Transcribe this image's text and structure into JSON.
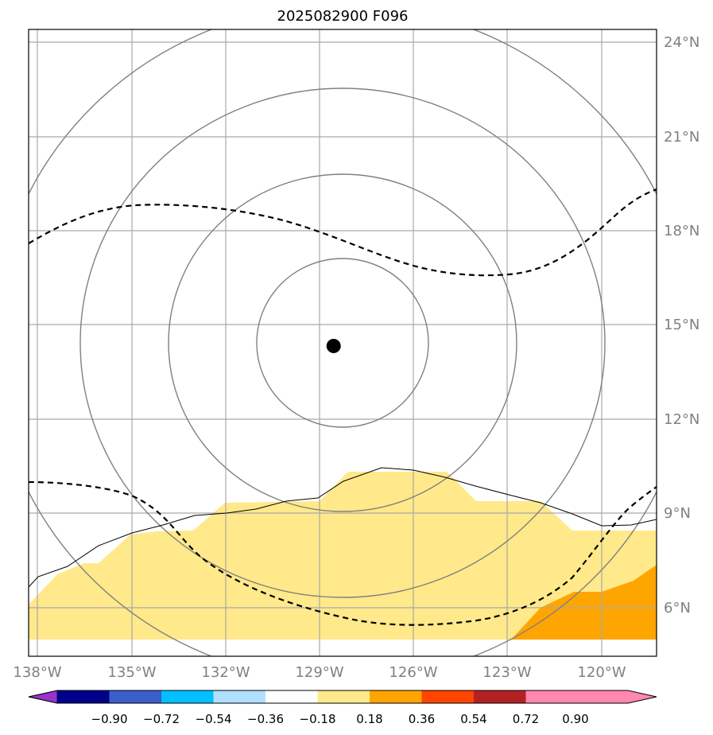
{
  "title": "2025082900 F096",
  "map": {
    "lon_range": [
      -138.5,
      -117.5
    ],
    "lat_range": [
      4.5,
      24.5
    ],
    "storm_center": {
      "lon": -128.3,
      "lat": 14.4
    },
    "lon_labels": [
      "138°W",
      "135°W",
      "132°W",
      "129°W",
      "126°W",
      "123°W",
      "120°W"
    ],
    "lat_labels": [
      "24°N",
      "21°N",
      "18°N",
      "15°N",
      "12°N",
      "9°N",
      "6°N"
    ],
    "range_rings_deg": [
      2.2,
      4.9,
      7.6,
      10.3
    ],
    "field_colors": {
      "low": "#ffe98a",
      "mid": "#ffa500"
    },
    "contour_color": "#808080",
    "dashed_line_color": "#000000",
    "coast_color": "#000000"
  },
  "colorbar": {
    "ticks": [
      "−0.90",
      "−0.72",
      "−0.54",
      "−0.36",
      "−0.18",
      "0.18",
      "0.36",
      "0.54",
      "0.72",
      "0.90"
    ],
    "colors": [
      "#9932cc",
      "#00008b",
      "#3a5fcd",
      "#00bfff",
      "#b0e0ff",
      "#ffffff",
      "#ffe98a",
      "#ffa500",
      "#ff4500",
      "#b22222",
      "#ff88b0"
    ]
  }
}
